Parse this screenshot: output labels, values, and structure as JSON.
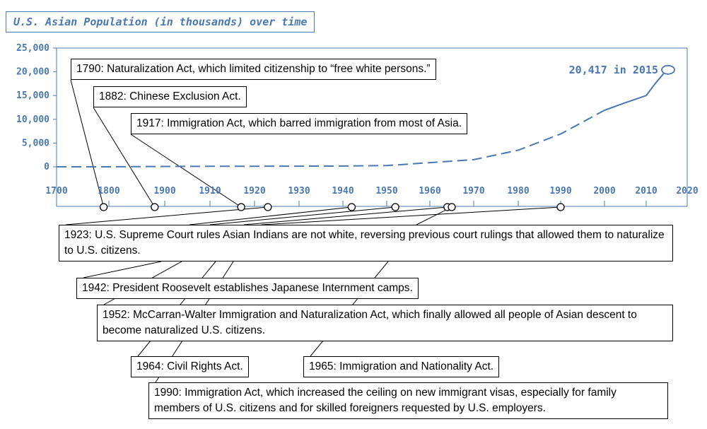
{
  "chart_data": {
    "type": "line",
    "title": "U.S. Asian Population (in thousands) over time",
    "xlabel": "",
    "ylabel": "",
    "xlim": [
      1700,
      2020
    ],
    "ylim": [
      0,
      25000
    ],
    "x_ticks": [
      "1700",
      "1800",
      "1900",
      "1910",
      "1920",
      "1930",
      "1940",
      "1950",
      "1960",
      "1970",
      "1980",
      "1990",
      "2000",
      "2010",
      "2020"
    ],
    "y_ticks": [
      "0",
      "5,000",
      "10,000",
      "15,000",
      "20,000",
      "25,000"
    ],
    "x_tick_values": [
      1700,
      1800,
      1900,
      1910,
      1920,
      1930,
      1940,
      1950,
      1960,
      1970,
      1980,
      1990,
      2000,
      2010,
      2020
    ],
    "y_tick_values": [
      0,
      5000,
      10000,
      15000,
      20000,
      25000
    ],
    "series": [
      {
        "style": "dashed",
        "points": [
          {
            "x": 1700,
            "y": 0
          },
          {
            "x": 1800,
            "y": 0
          },
          {
            "x": 1900,
            "y": 80
          },
          {
            "x": 1910,
            "y": 100
          },
          {
            "x": 1920,
            "y": 120
          },
          {
            "x": 1930,
            "y": 140
          },
          {
            "x": 1940,
            "y": 160
          },
          {
            "x": 1950,
            "y": 250
          },
          {
            "x": 1960,
            "y": 880
          },
          {
            "x": 1970,
            "y": 1500
          },
          {
            "x": 1980,
            "y": 3500
          },
          {
            "x": 1990,
            "y": 6900
          },
          {
            "x": 2000,
            "y": 11900
          }
        ]
      },
      {
        "style": "solid",
        "points": [
          {
            "x": 2000,
            "y": 11900
          },
          {
            "x": 2005,
            "y": 13500
          },
          {
            "x": 2010,
            "y": 15000
          },
          {
            "x": 2012,
            "y": 17300
          },
          {
            "x": 2015,
            "y": 20417
          }
        ]
      }
    ],
    "end_label": {
      "text": "20,417 in 2015",
      "x": 2015,
      "y": 20417
    },
    "colors": {
      "line": "#4a78b0",
      "axis": "#4a78b0",
      "annotation_border": "#000000"
    }
  },
  "annotations": [
    {
      "year": 1790,
      "text": "1790: Naturalization Act, which limited citizenship to “free white persons.”"
    },
    {
      "year": 1882,
      "text": "1882: Chinese Exclusion Act."
    },
    {
      "year": 1917,
      "text": "1917: Immigration Act, which barred immigration from most of Asia."
    },
    {
      "year": 1923,
      "text": "1923: U.S. Supreme Court rules Asian Indians are not white, reversing previous court rulings that allowed them to naturalize to U.S. citizens."
    },
    {
      "year": 1942,
      "text": "1942: President Roosevelt establishes Japanese Internment camps."
    },
    {
      "year": 1952,
      "text": "1952: McCarran-Walter Immigration and Naturalization Act, which finally allowed all people of Asian descent to become naturalized U.S. citizens."
    },
    {
      "year": 1964,
      "text": "1964: Civil Rights Act."
    },
    {
      "year": 1965,
      "text": "1965: Immigration and Nationality Act."
    },
    {
      "year": 1990,
      "text": "1990: Immigration Act, which increased the ceiling on new immigrant visas, especially for family members of U.S. citizens and for skilled foreigners requested by U.S. employers."
    }
  ]
}
